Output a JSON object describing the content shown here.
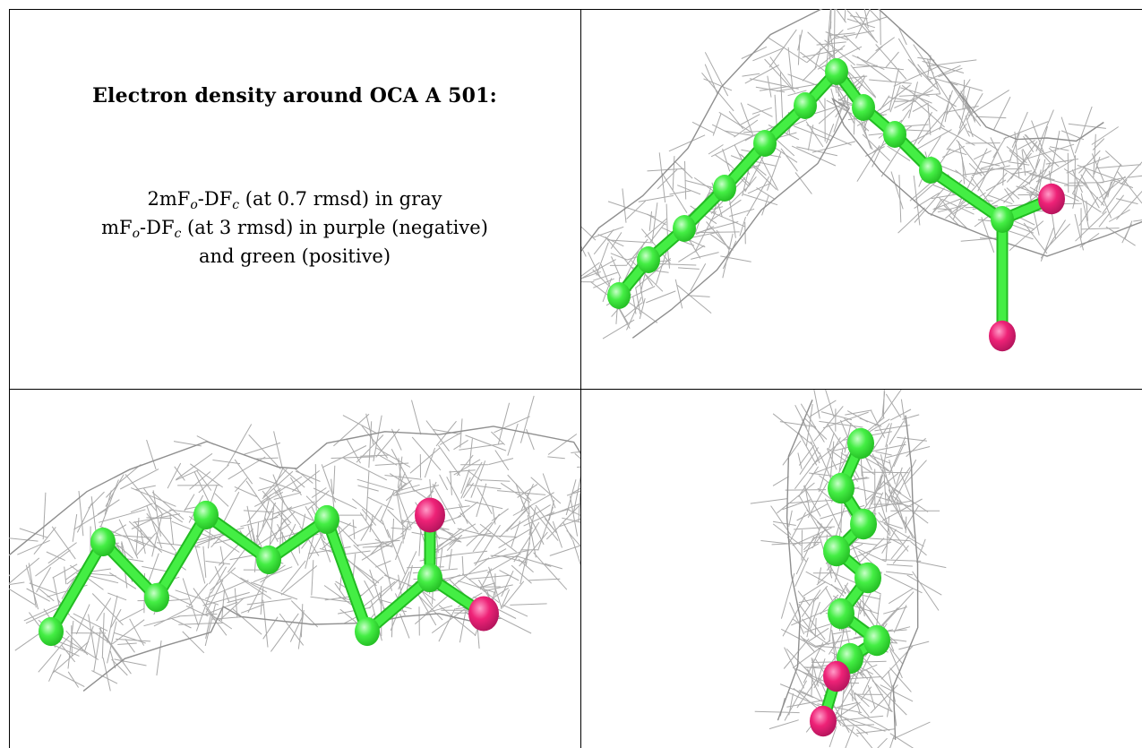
{
  "panel_title": "Electron density around OCA A 501:",
  "legend": {
    "map1_lead": "2mF",
    "map1_sub1": "o",
    "map1_mid": "-DF",
    "map1_sub2": "c",
    "map1_tail": " (at 0.7 rmsd) in gray",
    "map2_lead": "mF",
    "map2_sub1": "o",
    "map2_mid": "-DF",
    "map2_sub2": "c",
    "map2_tail": " (at 3 rmsd) in purple (negative)",
    "map3": "and green (positive)"
  },
  "colors": {
    "carbon": "#44ee44",
    "carbon_dark": "#22bb22",
    "oxygen": "#ee2277",
    "oxygen_dark": "#b0135a",
    "mesh": "#a9a9a9",
    "grid_border": "#000000"
  },
  "views": [
    "view-1",
    "view-2",
    "view-3"
  ]
}
